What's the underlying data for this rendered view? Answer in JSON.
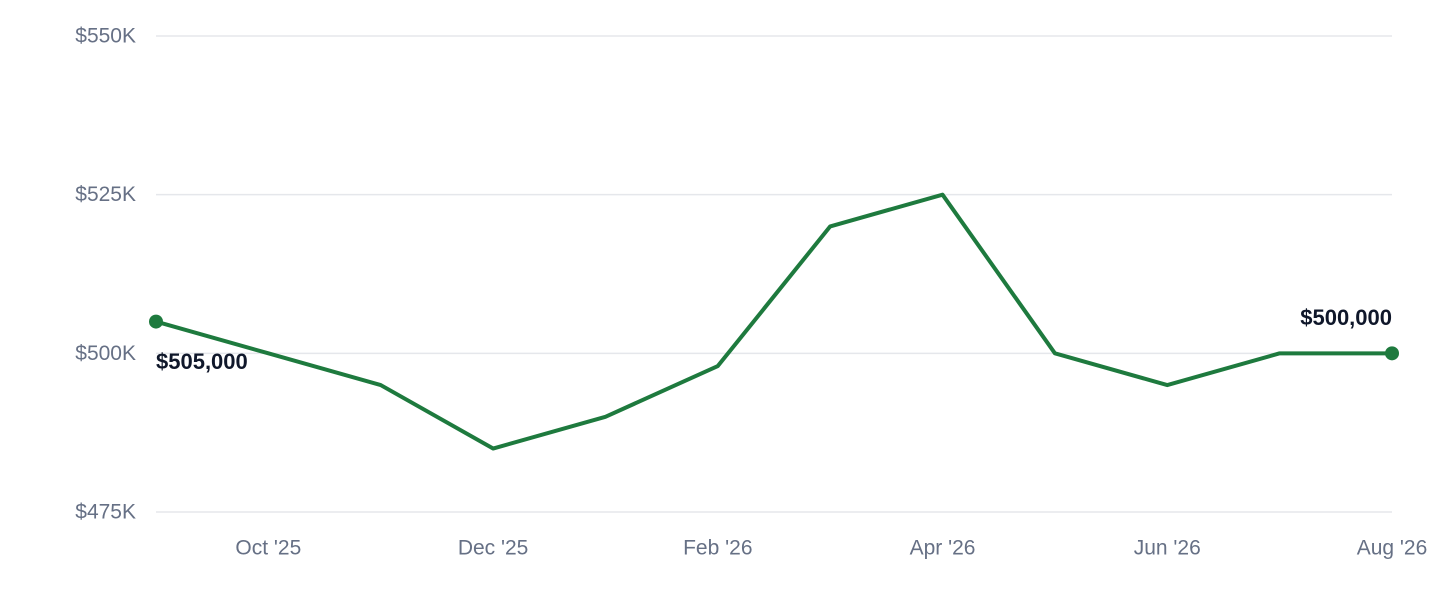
{
  "chart_data": {
    "type": "line",
    "x": [
      "Sep '25",
      "Oct '25",
      "Nov '25",
      "Dec '25",
      "Jan '26",
      "Feb '26",
      "Mar '26",
      "Apr '26",
      "May '26",
      "Jun '26",
      "Jul '26",
      "Aug '26"
    ],
    "series": [
      {
        "values": [
          505000,
          500000,
          495000,
          485000,
          490000,
          498000,
          520000,
          525000,
          500000,
          495000,
          500000,
          500000
        ]
      }
    ],
    "x_tick_labels": [
      "Oct '25",
      "Dec '25",
      "Feb '26",
      "Apr '26",
      "Jun '26",
      "Aug '26"
    ],
    "y_ticks": [
      475000,
      500000,
      525000,
      550000
    ],
    "y_tick_labels": [
      "$475K",
      "$500K",
      "$525K",
      "$550K"
    ],
    "ylim": [
      475000,
      550000
    ],
    "grid": true,
    "annotations": [
      {
        "label": "$505,000",
        "point": "Sep '25",
        "position": "below-right"
      },
      {
        "label": "$500,000",
        "point": "Aug '26",
        "position": "above-left"
      }
    ],
    "colors": {
      "line": "#1e7a3e",
      "grid": "#e5e7eb",
      "tick_text": "#667085",
      "annotation_text": "#0f172a"
    }
  }
}
